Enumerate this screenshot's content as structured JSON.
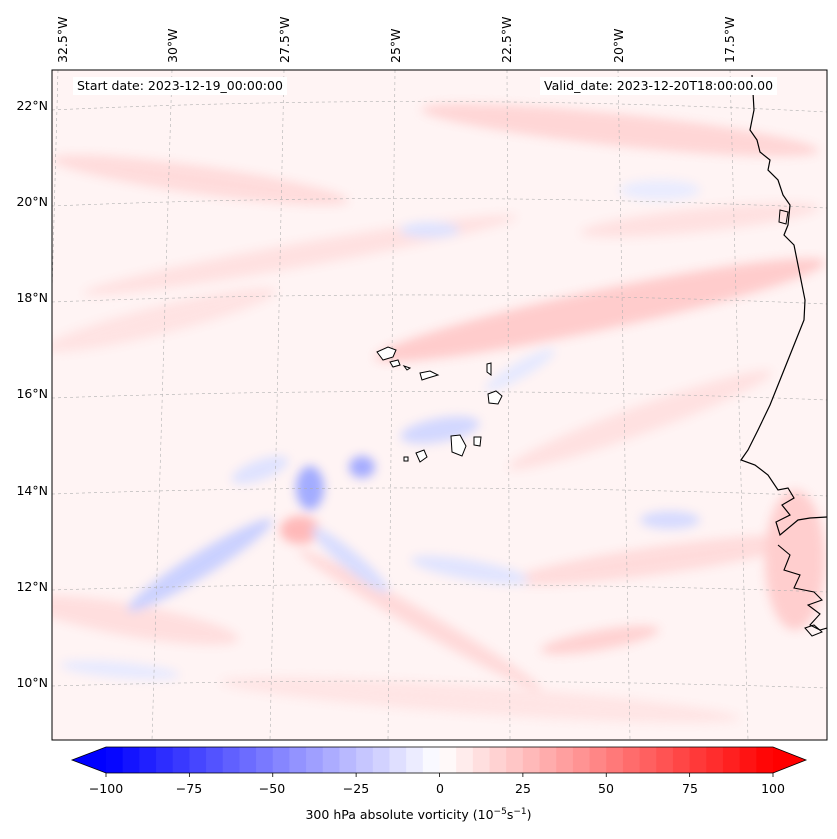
{
  "map": {
    "start_label": "Start date: 2023-12-19_00:00:00",
    "valid_label": "Valid_date: 2023-12-20T18:00:00.00",
    "lon_labels": [
      "32.5°W",
      "30°W",
      "27.5°W",
      "25°W",
      "22.5°W",
      "20°W",
      "17.5°W"
    ],
    "lat_labels": [
      "22°N",
      "20°N",
      "18°N",
      "16°N",
      "14°N",
      "12°N",
      "10°N"
    ],
    "colorbar": {
      "ticks": [
        "−100",
        "−75",
        "−50",
        "−25",
        "0",
        "25",
        "50",
        "75",
        "100"
      ],
      "label_main": "300 hPa absolute vorticity (10",
      "label_exp1": "−5",
      "label_mid": "s",
      "label_exp2": "−1",
      "label_end": ")",
      "min": -100,
      "max": 100,
      "step": 5,
      "colors": {
        "low": "#0000ff",
        "mid": "#ffffff",
        "high": "#ff0000"
      }
    },
    "coastline_color": "#000000",
    "grid_color": "#b0b0b0"
  }
}
